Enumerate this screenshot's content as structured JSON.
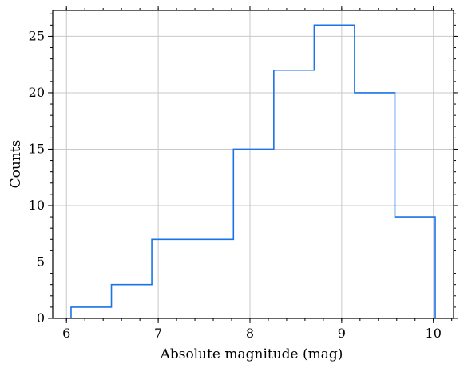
{
  "chart_data": {
    "type": "histogram",
    "title": "",
    "xlabel": "Absolute magnitude (mag)",
    "ylabel": "Counts",
    "xlim": [
      5.85,
      10.22
    ],
    "ylim": [
      0,
      27.3
    ],
    "xticks": [
      6,
      7,
      8,
      9,
      10
    ],
    "yticks": [
      0,
      5,
      10,
      15,
      20,
      25
    ],
    "x_minor_step": 0.2,
    "y_minor_step": 1,
    "grid": true,
    "legend": false,
    "series": [
      {
        "color": "#1a73e8",
        "bin_edges": [
          6.05,
          6.49,
          6.93,
          7.38,
          7.82,
          8.26,
          8.7,
          9.14,
          9.58,
          10.02
        ],
        "counts": [
          1,
          3,
          7,
          7,
          15,
          22,
          26,
          20,
          9
        ]
      }
    ]
  }
}
